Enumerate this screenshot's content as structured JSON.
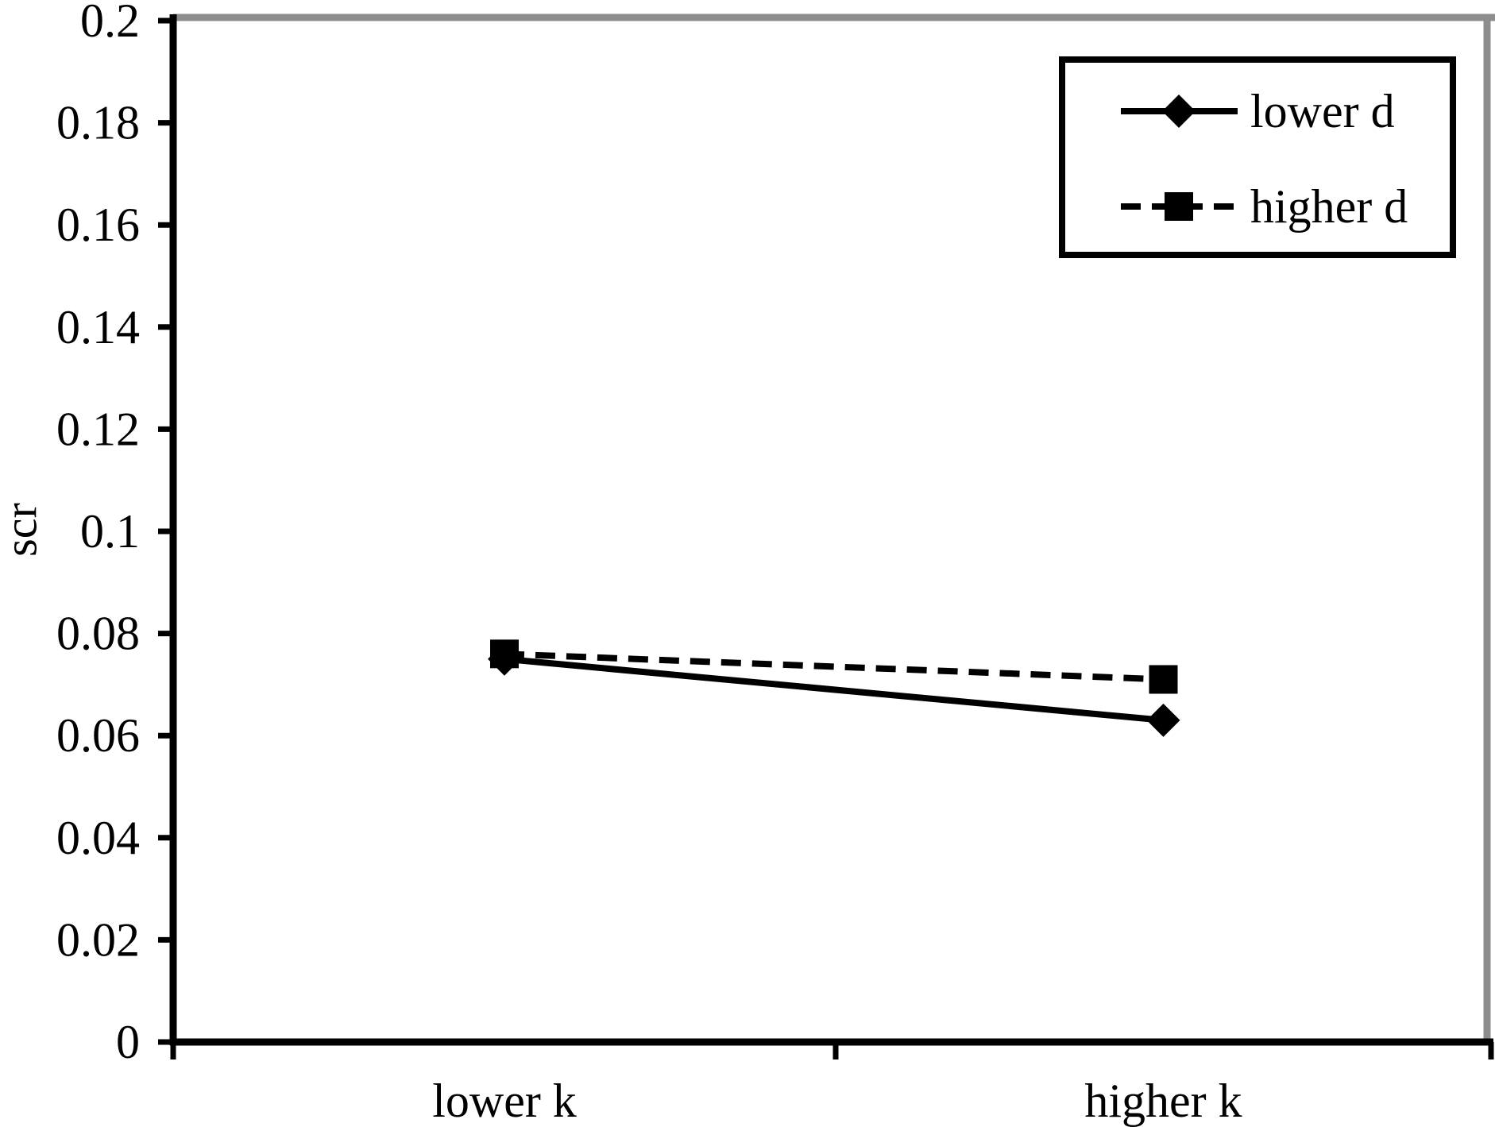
{
  "chart_data": {
    "type": "line",
    "title": "",
    "xlabel": "",
    "ylabel": "scr",
    "categories": [
      "lower k",
      "higher k"
    ],
    "series": [
      {
        "name": "lower d",
        "values": [
          0.075,
          0.063
        ],
        "line": "solid",
        "marker": "diamond"
      },
      {
        "name": "higher d",
        "values": [
          0.076,
          0.071
        ],
        "line": "dashed",
        "marker": "square"
      }
    ],
    "ylim": [
      0,
      0.2
    ],
    "ytick_step": 0.02,
    "ytick_labels": [
      "0",
      "0.02",
      "0.04",
      "0.06",
      "0.08",
      "0.1",
      "0.12",
      "0.14",
      "0.16",
      "0.18",
      "0.2"
    ],
    "grid": false,
    "legend_position": "top-right",
    "colors": {
      "series": "#000000",
      "axis": "#000000",
      "frame_gray": "#8d8d8d",
      "background": "#ffffff"
    }
  }
}
